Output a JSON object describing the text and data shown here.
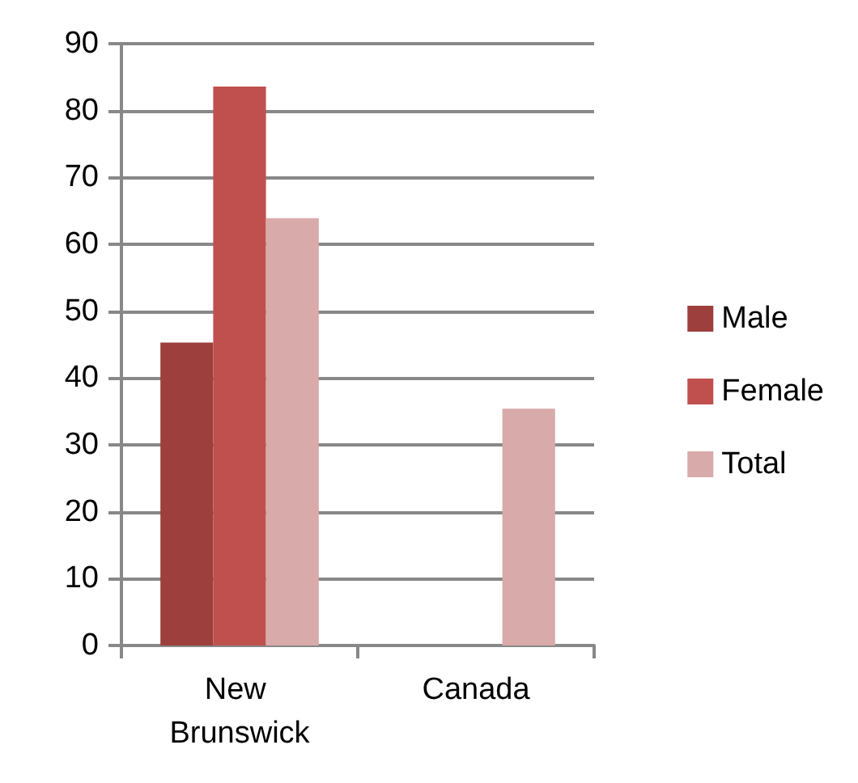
{
  "chart_data": {
    "type": "bar",
    "categories": [
      "New Brunswick",
      "Canada"
    ],
    "series": [
      {
        "name": "Male",
        "color": "#9c3f3d",
        "values": [
          45.3,
          null
        ]
      },
      {
        "name": "Female",
        "color": "#c0504d",
        "values": [
          83.6,
          null
        ]
      },
      {
        "name": "Total",
        "color": "#d9aaaa",
        "values": [
          63.9,
          35.4
        ]
      }
    ],
    "ylim": [
      0,
      90
    ],
    "yticks": [
      0,
      10,
      20,
      30,
      40,
      50,
      60,
      70,
      80,
      90
    ],
    "grid": "y",
    "legend": "right"
  }
}
